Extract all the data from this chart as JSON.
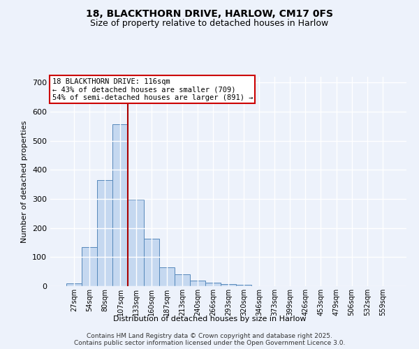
{
  "title1": "18, BLACKTHORN DRIVE, HARLOW, CM17 0FS",
  "title2": "Size of property relative to detached houses in Harlow",
  "xlabel": "Distribution of detached houses by size in Harlow",
  "ylabel": "Number of detached properties",
  "categories": [
    "27sqm",
    "54sqm",
    "80sqm",
    "107sqm",
    "133sqm",
    "160sqm",
    "187sqm",
    "213sqm",
    "240sqm",
    "266sqm",
    "293sqm",
    "320sqm",
    "346sqm",
    "373sqm",
    "399sqm",
    "426sqm",
    "453sqm",
    "479sqm",
    "506sqm",
    "532sqm",
    "559sqm"
  ],
  "values": [
    10,
    135,
    365,
    557,
    297,
    163,
    65,
    40,
    20,
    13,
    8,
    4,
    0,
    0,
    0,
    0,
    0,
    0,
    0,
    0,
    0
  ],
  "bar_color": "#c5d8f0",
  "bar_edge_color": "#5588bb",
  "bar_linewidth": 0.7,
  "vline_pos": 3.5,
  "vline_color": "#aa0000",
  "annotation_title": "18 BLACKTHORN DRIVE: 116sqm",
  "annotation_line1": "← 43% of detached houses are smaller (709)",
  "annotation_line2": "54% of semi-detached houses are larger (891) →",
  "annotation_box_facecolor": "#ffffff",
  "annotation_box_edgecolor": "#cc0000",
  "ylim": [
    0,
    720
  ],
  "yticks": [
    0,
    100,
    200,
    300,
    400,
    500,
    600,
    700
  ],
  "background_color": "#edf2fb",
  "grid_color": "#ffffff",
  "footer1": "Contains HM Land Registry data © Crown copyright and database right 2025.",
  "footer2": "Contains public sector information licensed under the Open Government Licence 3.0."
}
